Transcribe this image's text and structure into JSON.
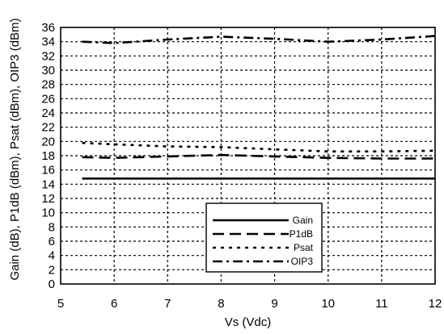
{
  "chart_data": {
    "type": "line",
    "title": "",
    "xlabel": "Vs (Vdc)",
    "ylabel": "Gain (dB), P1dB (dBm), Psat (dBm), OIP3 (dBm)",
    "xlim": [
      5,
      12
    ],
    "ylim": [
      0,
      36
    ],
    "xticks": [
      5,
      6,
      7,
      8,
      9,
      10,
      11,
      12
    ],
    "yticks": [
      0,
      2,
      4,
      6,
      8,
      10,
      12,
      14,
      16,
      18,
      20,
      22,
      24,
      26,
      28,
      30,
      32,
      34,
      36
    ],
    "grid": true,
    "legend_position": "bottom-right",
    "series": [
      {
        "name": "Gain",
        "style": "solid",
        "x": [
          5.4,
          6,
          7,
          8,
          9,
          10,
          11,
          12
        ],
        "y": [
          14.8,
          14.8,
          14.8,
          14.8,
          14.8,
          14.8,
          14.8,
          14.8
        ]
      },
      {
        "name": "P1dB",
        "style": "dash",
        "x": [
          5.4,
          6,
          7,
          8,
          9,
          10,
          11,
          12
        ],
        "y": [
          17.8,
          17.7,
          17.9,
          18.1,
          17.9,
          17.7,
          17.6,
          17.6
        ]
      },
      {
        "name": "Psat",
        "style": "dot",
        "x": [
          5.4,
          6,
          7,
          8,
          9,
          10,
          11,
          12
        ],
        "y": [
          19.8,
          19.6,
          19.3,
          19.2,
          18.9,
          18.6,
          18.6,
          18.7
        ]
      },
      {
        "name": "OIP3",
        "style": "dashdot",
        "x": [
          5.4,
          6,
          7,
          8,
          9,
          10,
          11,
          12
        ],
        "y": [
          34.0,
          33.8,
          34.3,
          34.7,
          34.4,
          34.0,
          34.3,
          34.8
        ]
      }
    ]
  }
}
